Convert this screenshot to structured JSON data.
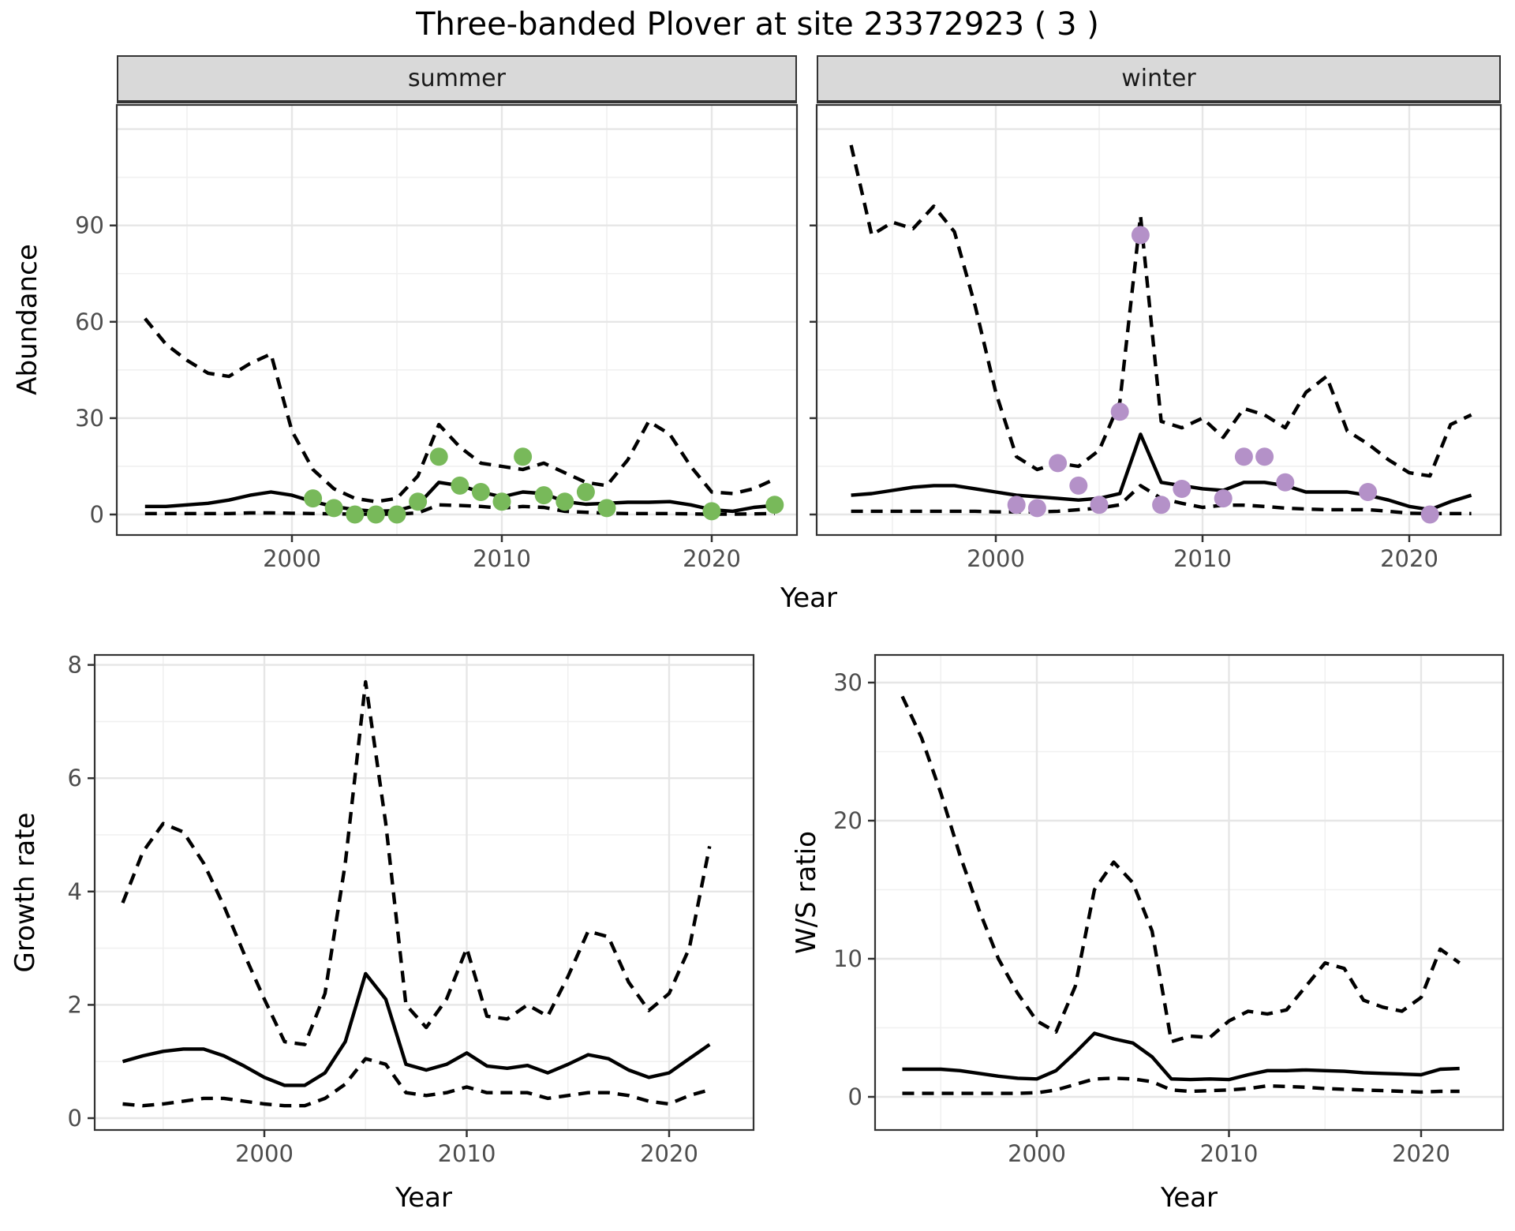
{
  "ui": {
    "title": "Three-banded Plover at site 23372923 ( 3 )",
    "facets": [
      "summer",
      "winter"
    ],
    "ylabel_abundance": "Abundance",
    "ylabel_growth": "Growth rate",
    "ylabel_ws": "W/S ratio",
    "xlabel": "Year"
  },
  "colors": {
    "summer_points": "#78b95a",
    "winter_points": "#b491c8",
    "line": "#000000",
    "strip_bg": "#d9d9d9",
    "grid_major": "#e6e6e6",
    "grid_minor": "#f0f0f0",
    "tick_text": "#4d4d4d"
  },
  "chart_data": [
    {
      "type": "line",
      "name": "abundance-summer",
      "facet": "summer",
      "ylabel": "Abundance",
      "xlabel": "Year",
      "xlim": [
        1991.7,
        2024.2
      ],
      "ylim": [
        -6.5,
        127.5
      ],
      "x": [
        1993,
        1994,
        1995,
        1996,
        1997,
        1998,
        1999,
        2000,
        2001,
        2002,
        2003,
        2004,
        2005,
        2006,
        2007,
        2008,
        2009,
        2010,
        2011,
        2012,
        2013,
        2014,
        2015,
        2016,
        2017,
        2018,
        2019,
        2020,
        2021,
        2022,
        2023
      ],
      "series": [
        {
          "name": "upper-95ci",
          "line": "dashed",
          "values": [
            61,
            53,
            48,
            44,
            43,
            47,
            50,
            26,
            14,
            8,
            5,
            4,
            5,
            12,
            28,
            21,
            16,
            15,
            14,
            16,
            13,
            10,
            9,
            17,
            29,
            25,
            15,
            7,
            6.5,
            8,
            11
          ]
        },
        {
          "name": "median",
          "line": "solid",
          "values": [
            2.5,
            2.5,
            3,
            3.5,
            4.5,
            6,
            7,
            6,
            4,
            2.5,
            1.5,
            1,
            1.2,
            3,
            10,
            9,
            7,
            5.5,
            7,
            6.5,
            4,
            3.2,
            3.5,
            3.8,
            3.8,
            4,
            3,
            1.5,
            1,
            2.2,
            2.8
          ]
        },
        {
          "name": "lower-95ci",
          "line": "dashed",
          "values": [
            0.3,
            0.3,
            0.3,
            0.3,
            0.3,
            0.5,
            0.5,
            0.4,
            0.3,
            0.2,
            0.1,
            0.1,
            0.1,
            0.5,
            3,
            2.8,
            2.5,
            2,
            2.5,
            2.2,
            1,
            0.7,
            0.4,
            0.3,
            0.3,
            0.3,
            0.2,
            0.1,
            0.1,
            0.2,
            0.3
          ]
        }
      ],
      "points": {
        "label": "observed-count",
        "color": "#78b95a",
        "years": [
          2001,
          2002,
          2003,
          2004,
          2005,
          2006,
          2007,
          2008,
          2009,
          2010,
          2011,
          2012,
          2013,
          2014,
          2015,
          2020,
          2023
        ],
        "values": [
          5,
          2,
          0,
          0,
          0,
          4,
          18,
          9,
          7,
          4,
          18,
          6,
          4,
          7,
          2,
          1,
          3
        ]
      },
      "axes": {
        "xticks": [
          2000,
          2010,
          2020
        ],
        "xminor": [
          1995,
          2005,
          2015
        ],
        "yticks": [
          0,
          30,
          60,
          90
        ],
        "yminor": [
          15,
          45,
          75,
          105
        ],
        "ymajor_extra": [
          120
        ]
      }
    },
    {
      "type": "line",
      "name": "abundance-winter",
      "facet": "winter",
      "ylabel": "Abundance",
      "xlabel": "Year",
      "xlim": [
        1991.3,
        2024.5
      ],
      "ylim": [
        -6.5,
        127.5
      ],
      "x": [
        1993,
        1994,
        1995,
        1996,
        1997,
        1998,
        1999,
        2000,
        2001,
        2002,
        2003,
        2004,
        2005,
        2006,
        2007,
        2008,
        2009,
        2010,
        2011,
        2012,
        2013,
        2014,
        2015,
        2016,
        2017,
        2018,
        2019,
        2020,
        2021,
        2022,
        2023
      ],
      "series": [
        {
          "name": "upper-95ci",
          "line": "dashed",
          "values": [
            115,
            87,
            91,
            89,
            96,
            88,
            65,
            38,
            18,
            14,
            16,
            15,
            20,
            35,
            93,
            29,
            27,
            30,
            24,
            33,
            31,
            27,
            38,
            43,
            26,
            22,
            17,
            13,
            12,
            28,
            31
          ]
        },
        {
          "name": "median",
          "line": "solid",
          "values": [
            6,
            6.5,
            7.5,
            8.5,
            9,
            9,
            8,
            7,
            6,
            5.5,
            5,
            4.5,
            5,
            6.5,
            25,
            10,
            9,
            8,
            7.5,
            10,
            10,
            9,
            7,
            7,
            7,
            6,
            4.5,
            2.5,
            1.5,
            4,
            6
          ]
        },
        {
          "name": "lower-95ci",
          "line": "dashed",
          "values": [
            1,
            1,
            1,
            1,
            1,
            1,
            1,
            0.8,
            0.8,
            0.8,
            1,
            1.5,
            2,
            3,
            9,
            5,
            3.5,
            2.2,
            2.9,
            2.9,
            2.5,
            2,
            1.7,
            1.5,
            1.5,
            1.5,
            1,
            0.4,
            0.3,
            0.3,
            0.3
          ]
        }
      ],
      "points": {
        "label": "observed-count",
        "color": "#b491c8",
        "years": [
          2001,
          2002,
          2003,
          2004,
          2005,
          2006,
          2007,
          2008,
          2009,
          2011,
          2012,
          2013,
          2014,
          2018,
          2021
        ],
        "values": [
          3,
          2,
          16,
          9,
          3,
          32,
          87,
          3,
          8,
          5,
          18,
          18,
          10,
          7,
          0
        ]
      },
      "axes": {
        "xticks": [
          2000,
          2010,
          2020
        ],
        "xminor": [
          1995,
          2005,
          2015
        ],
        "yticks": [
          0,
          30,
          60,
          90
        ],
        "yminor": [
          15,
          45,
          75,
          105
        ],
        "ymajor_extra": [
          120
        ]
      }
    },
    {
      "type": "line",
      "name": "growth-rate",
      "ylabel": "Growth rate",
      "xlabel": "Year",
      "xlim": [
        1991.6,
        2024.2
      ],
      "ylim": [
        -0.2,
        8.2
      ],
      "x": [
        1993,
        1994,
        1995,
        1996,
        1997,
        1998,
        1999,
        2000,
        2001,
        2002,
        2003,
        2004,
        2005,
        2006,
        2007,
        2008,
        2009,
        2010,
        2011,
        2012,
        2013,
        2014,
        2015,
        2016,
        2017,
        2018,
        2019,
        2020,
        2021,
        2022
      ],
      "series": [
        {
          "name": "upper-95ci",
          "line": "dashed",
          "values": [
            3.8,
            4.7,
            5.2,
            5.05,
            4.5,
            3.75,
            2.9,
            2.1,
            1.35,
            1.3,
            2.2,
            4.5,
            7.7,
            5.2,
            2.0,
            1.6,
            2.1,
            3.0,
            1.8,
            1.75,
            2.0,
            1.8,
            2.5,
            3.3,
            3.2,
            2.4,
            1.9,
            2.2,
            3.0,
            4.8
          ]
        },
        {
          "name": "median",
          "line": "solid",
          "values": [
            1.0,
            1.1,
            1.18,
            1.22,
            1.22,
            1.1,
            0.92,
            0.72,
            0.58,
            0.58,
            0.8,
            1.35,
            2.55,
            2.1,
            0.95,
            0.85,
            0.95,
            1.15,
            0.92,
            0.88,
            0.93,
            0.8,
            0.95,
            1.12,
            1.05,
            0.85,
            0.72,
            0.8,
            1.05,
            1.3
          ]
        },
        {
          "name": "lower-95ci",
          "line": "dashed",
          "values": [
            0.25,
            0.22,
            0.25,
            0.3,
            0.35,
            0.35,
            0.3,
            0.25,
            0.22,
            0.22,
            0.35,
            0.6,
            1.05,
            0.95,
            0.45,
            0.4,
            0.45,
            0.55,
            0.45,
            0.45,
            0.45,
            0.35,
            0.4,
            0.45,
            0.45,
            0.4,
            0.3,
            0.25,
            0.4,
            0.5
          ]
        }
      ],
      "points": null,
      "axes": {
        "xticks": [
          2000,
          2010,
          2020
        ],
        "xminor": [
          1995,
          2005,
          2015
        ],
        "yticks": [
          0,
          2,
          4,
          6,
          8
        ],
        "yminor": [
          1,
          3,
          5,
          7
        ],
        "ymajor_extra": []
      }
    },
    {
      "type": "line",
      "name": "ws-ratio",
      "ylabel": "W/S ratio",
      "xlabel": "Year",
      "xlim": [
        1991.6,
        2024.3
      ],
      "ylim": [
        -2.4,
        32
      ],
      "x": [
        1993,
        1994,
        1995,
        1996,
        1997,
        1998,
        1999,
        2000,
        2001,
        2002,
        2003,
        2004,
        2005,
        2006,
        2007,
        2008,
        2009,
        2010,
        2011,
        2012,
        2013,
        2014,
        2015,
        2016,
        2017,
        2018,
        2019,
        2020,
        2021,
        2022
      ],
      "series": [
        {
          "name": "upper-95ci",
          "line": "dashed",
          "values": [
            29,
            26,
            22,
            17.5,
            13.5,
            10,
            7.5,
            5.5,
            4.7,
            8,
            15,
            17,
            15.5,
            12,
            4,
            4.4,
            4.3,
            5.5,
            6.2,
            6,
            6.3,
            8,
            9.7,
            9.3,
            7,
            6.5,
            6.2,
            7.2,
            10.7,
            9.7
          ]
        },
        {
          "name": "median",
          "line": "solid",
          "values": [
            2,
            2,
            2,
            1.9,
            1.7,
            1.5,
            1.35,
            1.3,
            1.9,
            3.2,
            4.6,
            4.2,
            3.9,
            2.9,
            1.3,
            1.25,
            1.3,
            1.25,
            1.6,
            1.9,
            1.9,
            1.95,
            1.9,
            1.85,
            1.75,
            1.7,
            1.65,
            1.6,
            2,
            2.05
          ]
        },
        {
          "name": "lower-95ci",
          "line": "dashed",
          "values": [
            0.25,
            0.25,
            0.25,
            0.25,
            0.25,
            0.25,
            0.25,
            0.3,
            0.5,
            0.9,
            1.3,
            1.35,
            1.3,
            1.1,
            0.5,
            0.4,
            0.45,
            0.5,
            0.6,
            0.8,
            0.75,
            0.7,
            0.6,
            0.55,
            0.5,
            0.45,
            0.4,
            0.35,
            0.4,
            0.4
          ]
        }
      ],
      "points": null,
      "axes": {
        "xticks": [
          2000,
          2010,
          2020
        ],
        "xminor": [
          1995,
          2005,
          2015
        ],
        "yticks": [
          0,
          10,
          20,
          30
        ],
        "yminor": [
          5,
          15,
          25
        ],
        "ymajor_extra": []
      }
    }
  ]
}
